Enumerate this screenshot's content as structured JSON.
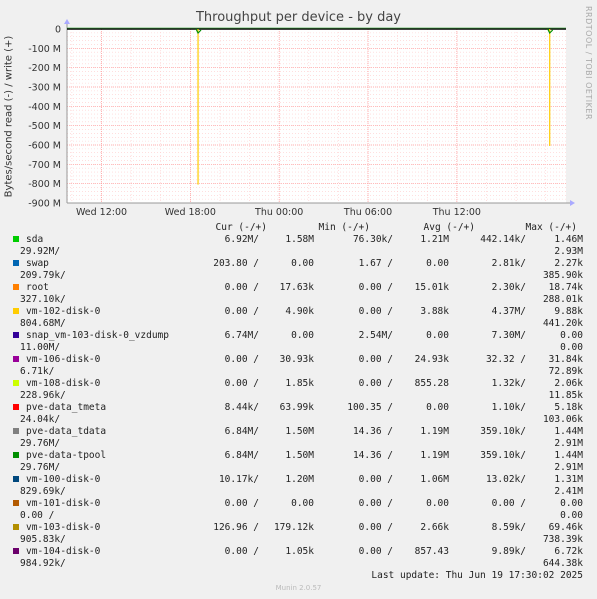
{
  "title": "Throughput per device - by day",
  "right_watermark": "RRDTOOL / TOBI OETIKER",
  "chart_data": {
    "type": "line",
    "title": "Throughput per device - by day",
    "ylabel": "Bytes/second read (-) / write (+)",
    "ylim": [
      -900,
      0
    ],
    "yunit": "M",
    "yticks": [
      "0",
      "-100 M",
      "-200 M",
      "-300 M",
      "-400 M",
      "-500 M",
      "-600 M",
      "-700 M",
      "-800 M",
      "-900 M"
    ],
    "xticks": [
      "Wed 12:00",
      "Wed 18:00",
      "Thu 00:00",
      "Thu 06:00",
      "Thu 12:00"
    ],
    "grid": true,
    "series_note": "spikes in read throughput",
    "spikes": [
      {
        "series": "vm-102-disk-0",
        "x_hours_from_start": 8.85,
        "value": -805
      },
      {
        "series": "vm-102-disk-0",
        "x_hours_from_start": 32.6,
        "value": -605
      }
    ]
  },
  "legend_header": {
    "cur": "Cur (-/+)",
    "min": "Min (-/+)",
    "avg": "Avg (-/+)",
    "max": "Max (-/+)"
  },
  "legend": [
    {
      "name": "sda",
      "color": "#00cc00",
      "cur_r": "6.92M/",
      "cur_w": "1.58M",
      "min_r": "76.30k/",
      "min_w": "1.21M",
      "avg_r": "442.14k/",
      "avg_w": "1.46M",
      "max_r": "29.92M/",
      "max_w": "2.93M"
    },
    {
      "name": "swap",
      "color": "#0066b3",
      "cur_r": "203.80 /",
      "cur_w": "0.00",
      "min_r": "1.67 /",
      "min_w": "0.00",
      "avg_r": "2.81k/",
      "avg_w": "2.27k",
      "max_r": "209.79k/",
      "max_w": "385.90k"
    },
    {
      "name": "root",
      "color": "#ff8000",
      "cur_r": "0.00 /",
      "cur_w": "17.63k",
      "min_r": "0.00 /",
      "min_w": "15.01k",
      "avg_r": "2.30k/",
      "avg_w": "18.74k",
      "max_r": "327.10k/",
      "max_w": "288.01k"
    },
    {
      "name": "vm-102-disk-0",
      "color": "#ffcc00",
      "cur_r": "0.00 /",
      "cur_w": "4.90k",
      "min_r": "0.00 /",
      "min_w": "3.88k",
      "avg_r": "4.37M/",
      "avg_w": "9.88k",
      "max_r": "804.68M/",
      "max_w": "441.20k"
    },
    {
      "name": "snap_vm-103-disk-0_vzdump",
      "color": "#330099",
      "cur_r": "6.74M/",
      "cur_w": "0.00",
      "min_r": "2.54M/",
      "min_w": "0.00",
      "avg_r": "7.30M/",
      "avg_w": "0.00",
      "max_r": "11.00M/",
      "max_w": "0.00"
    },
    {
      "name": "vm-106-disk-0",
      "color": "#990099",
      "cur_r": "0.00 /",
      "cur_w": "30.93k",
      "min_r": "0.00 /",
      "min_w": "24.93k",
      "avg_r": "32.32 /",
      "avg_w": "31.84k",
      "max_r": "6.71k/",
      "max_w": "72.89k"
    },
    {
      "name": "vm-108-disk-0",
      "color": "#ccff00",
      "cur_r": "0.00 /",
      "cur_w": "1.85k",
      "min_r": "0.00 /",
      "min_w": "855.28",
      "avg_r": "1.32k/",
      "avg_w": "2.06k",
      "max_r": "228.96k/",
      "max_w": "11.85k"
    },
    {
      "name": "pve-data_tmeta",
      "color": "#ff0000",
      "cur_r": "8.44k/",
      "cur_w": "63.99k",
      "min_r": "100.35 /",
      "min_w": "0.00",
      "avg_r": "1.10k/",
      "avg_w": "5.18k",
      "max_r": "24.04k/",
      "max_w": "103.06k"
    },
    {
      "name": "pve-data_tdata",
      "color": "#808080",
      "cur_r": "6.84M/",
      "cur_w": "1.50M",
      "min_r": "14.36 /",
      "min_w": "1.19M",
      "avg_r": "359.10k/",
      "avg_w": "1.44M",
      "max_r": "29.76M/",
      "max_w": "2.91M"
    },
    {
      "name": "pve-data-tpool",
      "color": "#008f00",
      "cur_r": "6.84M/",
      "cur_w": "1.50M",
      "min_r": "14.36 /",
      "min_w": "1.19M",
      "avg_r": "359.10k/",
      "avg_w": "1.44M",
      "max_r": "29.76M/",
      "max_w": "2.91M"
    },
    {
      "name": "vm-100-disk-0",
      "color": "#00487d",
      "cur_r": "10.17k/",
      "cur_w": "1.20M",
      "min_r": "0.00 /",
      "min_w": "1.06M",
      "avg_r": "13.02k/",
      "avg_w": "1.31M",
      "max_r": "829.69k/",
      "max_w": "2.41M"
    },
    {
      "name": "vm-101-disk-0",
      "color": "#b35a00",
      "cur_r": "0.00 /",
      "cur_w": "0.00",
      "min_r": "0.00 /",
      "min_w": "0.00",
      "avg_r": "0.00 /",
      "avg_w": "0.00",
      "max_r": "0.00 /",
      "max_w": "0.00"
    },
    {
      "name": "vm-103-disk-0",
      "color": "#b38f00",
      "cur_r": "126.96 /",
      "cur_w": "179.12k",
      "min_r": "0.00 /",
      "min_w": "2.66k",
      "avg_r": "8.59k/",
      "avg_w": "69.46k",
      "max_r": "905.83k/",
      "max_w": "738.39k"
    },
    {
      "name": "vm-104-disk-0",
      "color": "#6b006b",
      "cur_r": "0.00 /",
      "cur_w": "1.05k",
      "min_r": "0.00 /",
      "min_w": "857.43",
      "avg_r": "9.89k/",
      "avg_w": "6.72k",
      "max_r": "984.92k/",
      "max_w": "644.38k"
    }
  ],
  "last_update": "Last update: Thu Jun 19 17:30:02 2025",
  "footer": "Munin 2.0.57"
}
